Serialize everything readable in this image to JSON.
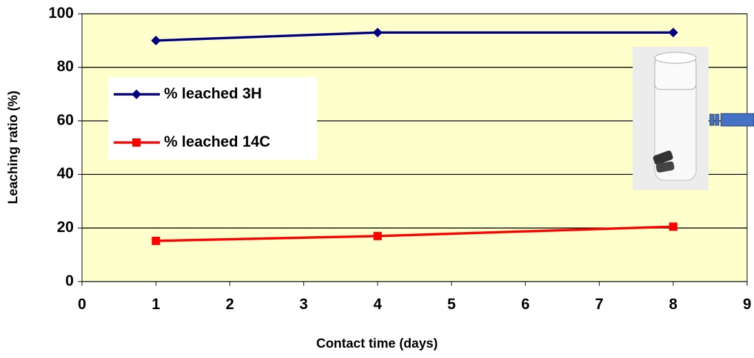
{
  "chart_data": {
    "type": "line",
    "x_label": "Contact time (days)",
    "y_label": "Leaching ratio (%)",
    "series": [
      {
        "name": "% leached  3H",
        "color": "#000080",
        "marker": "diamond",
        "x": [
          1,
          4,
          8
        ],
        "values": [
          90,
          93,
          93
        ]
      },
      {
        "name": "% leached  14C",
        "color": "#ff0000",
        "marker": "square",
        "x": [
          1,
          4,
          8
        ],
        "values": [
          15.2,
          17,
          20.5
        ]
      }
    ],
    "xlim": [
      0,
      9
    ],
    "xticks": [
      0,
      1,
      2,
      3,
      4,
      5,
      6,
      7,
      8,
      9
    ],
    "ylim": [
      0,
      100
    ],
    "yticks": [
      0,
      20,
      40,
      60,
      80,
      100
    ],
    "grid": true,
    "legend": "upper left",
    "plot_background": "#ffffcc"
  }
}
